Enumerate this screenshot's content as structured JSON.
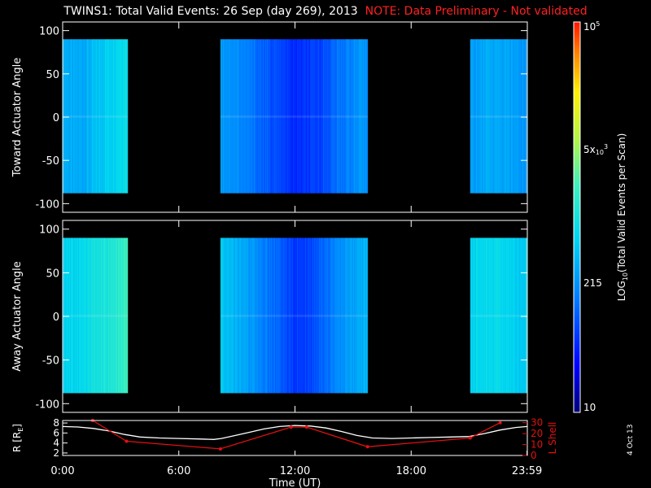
{
  "header": {
    "title_main": "TWINS1: Total Valid Events: 26 Sep (day 269), 2013",
    "title_note": "NOTE: Data Preliminary - Not validated"
  },
  "stamp": "4 Oct 13",
  "colors": {
    "background": "#000000",
    "axes": "#ffffff",
    "note": "#ff2020",
    "lshell": "#e01010",
    "r_line": "#ffffff"
  },
  "chart_data": [
    {
      "type": "heatmap",
      "name": "toward-panel",
      "ylabel": "Toward Actuator Angle",
      "ylim": [
        -110,
        110
      ],
      "yticks": [
        100,
        50,
        0,
        -50,
        -100
      ],
      "xlim": [
        0,
        24
      ],
      "data_ylim": [
        -88,
        90
      ],
      "blocks": [
        {
          "t_start": 0.0,
          "t_end": 3.35,
          "log_levels": [
            2.55,
            2.45,
            2.5,
            2.6,
            2.75,
            2.85,
            2.95
          ]
        },
        {
          "t_start": 8.15,
          "t_end": 15.75,
          "log_levels": [
            2.4,
            2.3,
            2.15,
            2.0,
            1.85,
            1.7,
            1.75,
            1.9,
            2.1,
            2.25,
            2.35
          ]
        },
        {
          "t_start": 21.05,
          "t_end": 24.0,
          "log_levels": [
            2.35,
            2.45,
            2.5,
            2.45,
            2.4,
            2.35
          ]
        }
      ]
    },
    {
      "type": "heatmap",
      "name": "away-panel",
      "ylabel": "Away Actuator Angle",
      "ylim": [
        -110,
        110
      ],
      "yticks": [
        100,
        50,
        0,
        -50,
        -100
      ],
      "xlim": [
        0,
        24
      ],
      "data_ylim": [
        -88,
        90
      ],
      "blocks": [
        {
          "t_start": 0.0,
          "t_end": 3.35,
          "log_levels": [
            2.75,
            2.8,
            2.85,
            2.95,
            3.05,
            3.15,
            3.3
          ]
        },
        {
          "t_start": 8.15,
          "t_end": 15.75,
          "log_levels": [
            2.7,
            2.55,
            2.4,
            2.2,
            2.0,
            1.8,
            1.85,
            2.05,
            2.3,
            2.45,
            2.55
          ]
        },
        {
          "t_start": 21.05,
          "t_end": 24.0,
          "log_levels": [
            2.8,
            2.85,
            2.85,
            2.8,
            2.75,
            2.75
          ]
        }
      ]
    },
    {
      "type": "line",
      "name": "orbit-panel",
      "xlabel": "Time (UT)",
      "xlim": [
        0,
        24
      ],
      "xticks": [
        0,
        6,
        12,
        18,
        23.983
      ],
      "xtick_labels": [
        "0:00",
        "6:00",
        "12:00",
        "18:00",
        "23:59"
      ],
      "y1label": "R [R",
      "y1label_sub": "E",
      "y1label_end": "]",
      "y1lim": [
        1.5,
        8.5
      ],
      "y1ticks": [
        2,
        4,
        6,
        8
      ],
      "y2label": "L Shell",
      "y2lim": [
        0,
        32
      ],
      "y2ticks": [
        0,
        10,
        20,
        30
      ],
      "series": [
        {
          "axis": "left",
          "color": "#ffffff",
          "x": [
            0,
            0.8,
            1.6,
            2.4,
            3.2,
            4.0,
            5.0,
            6.0,
            7.0,
            7.8,
            8.2,
            8.8,
            9.6,
            10.4,
            11.2,
            12.0,
            12.8,
            13.6,
            14.4,
            15.2,
            16.0,
            17.0,
            18.0,
            19.0,
            20.0,
            21.0,
            21.8,
            22.6,
            23.4,
            24.0
          ],
          "y": [
            7.3,
            7.2,
            6.9,
            6.4,
            5.7,
            5.2,
            5.0,
            4.9,
            4.8,
            4.7,
            4.9,
            5.4,
            6.1,
            6.8,
            7.3,
            7.5,
            7.4,
            7.0,
            6.3,
            5.5,
            5.0,
            4.9,
            5.0,
            5.1,
            5.2,
            5.3,
            5.9,
            6.6,
            7.1,
            7.3
          ]
        },
        {
          "axis": "right",
          "color": "#e01010",
          "x": [
            1.55,
            3.3,
            8.15,
            11.8,
            12.6,
            15.75,
            21.05,
            22.6
          ],
          "y": [
            32,
            13,
            6,
            26,
            26,
            8,
            16,
            30
          ]
        }
      ]
    }
  ],
  "colorbar": {
    "type": "colorscale",
    "label_main": "LOG",
    "label_sub": "10",
    "label_end": "(Total Valid Events per Scan)",
    "log_range": [
      1,
      5
    ],
    "ticks": [
      {
        "value": 5,
        "label": "10",
        "sup": "5",
        "sub": ""
      },
      {
        "value": 3.699,
        "label": "5x",
        "sup": "3",
        "sub": "10"
      },
      {
        "value": 2.332,
        "label": "215",
        "sup": "",
        "sub": ""
      },
      {
        "value": 1,
        "label": "10",
        "sup": "",
        "sub": ""
      }
    ]
  }
}
